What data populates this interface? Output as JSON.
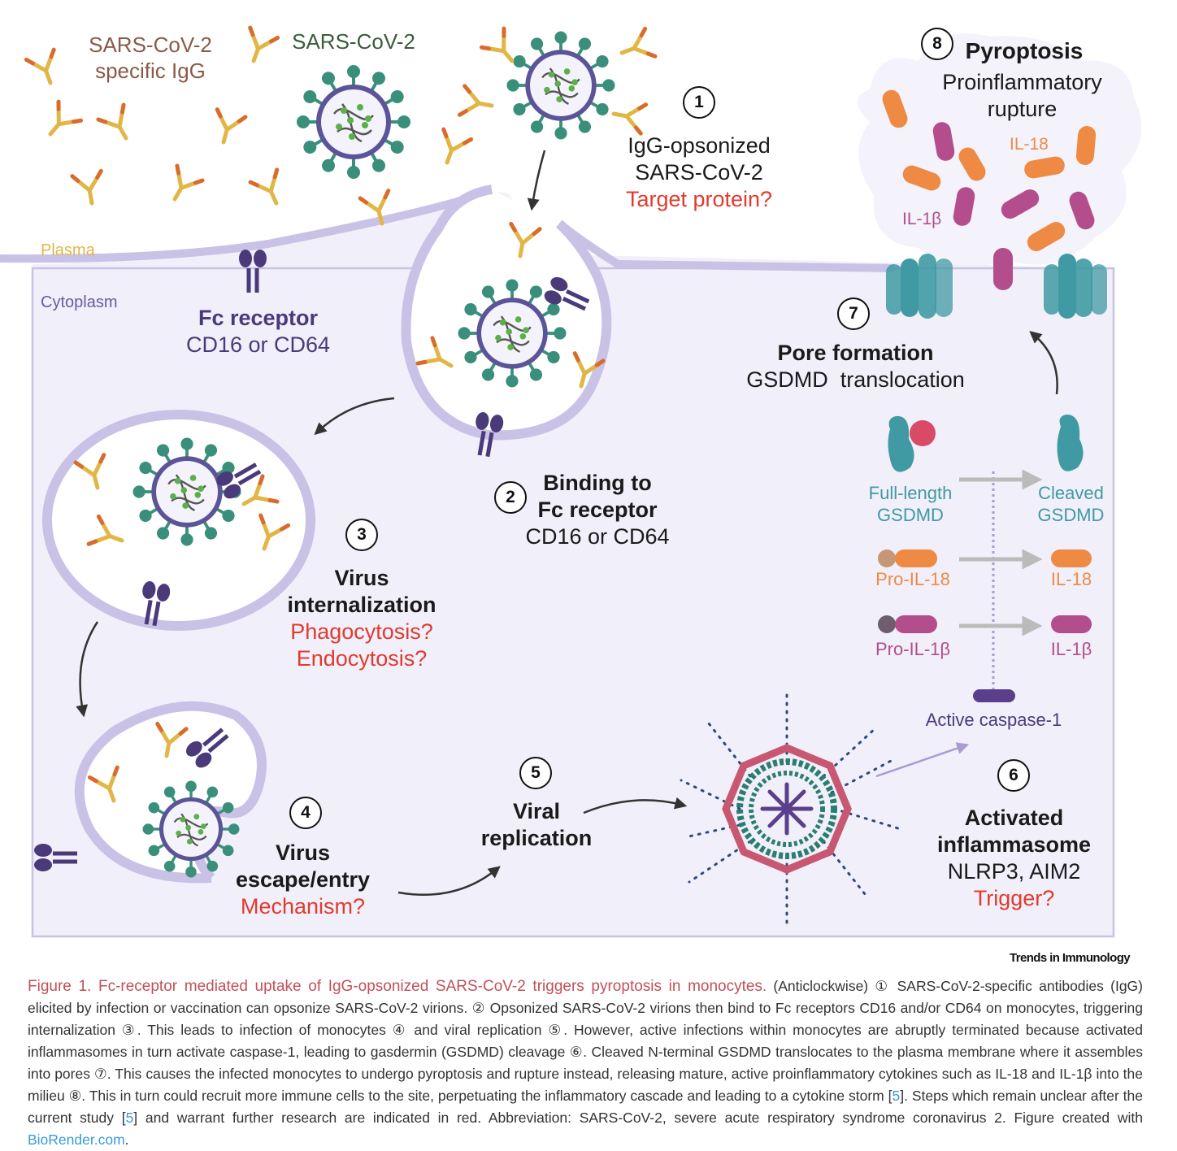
{
  "labels": {
    "igg": [
      "SARS-CoV-2",
      "specific IgG"
    ],
    "virus": "SARS-CoV-2",
    "plasma": "Plasma",
    "cytoplasm": "Cytoplasm",
    "fc_receptor": {
      "title": "Fc receptor",
      "sub": "CD16 or CD64"
    },
    "step1": {
      "num": "1",
      "lines": [
        "IgG-opsonized",
        "SARS-CoV-2"
      ],
      "question": "Target protein?"
    },
    "step2": {
      "num": "2",
      "lines": [
        "Binding to",
        "Fc receptor"
      ],
      "sub": "CD16 or CD64"
    },
    "step3": {
      "num": "3",
      "lines": [
        "Virus",
        "internalization"
      ],
      "questions": [
        "Phagocytosis?",
        "Endocytosis?"
      ]
    },
    "step4": {
      "num": "4",
      "lines": [
        "Virus",
        "escape/entry"
      ],
      "question": "Mechanism?"
    },
    "step5": {
      "num": "5",
      "lines": [
        "Viral",
        "replication"
      ]
    },
    "step6": {
      "num": "6",
      "lines": [
        "Activated",
        "inflammasome"
      ],
      "sub": "NLRP3, AIM2",
      "question": "Trigger?"
    },
    "step7": {
      "num": "7",
      "title": "Pore formation",
      "sub": "GSDMD  translocation"
    },
    "step8": {
      "num": "8",
      "title": "Pyroptosis",
      "sub": [
        "Proinflammatory",
        "rupture"
      ]
    },
    "il18": "IL-18",
    "il1b": "IL-1β",
    "full_gsdmd": [
      "Full-length",
      "GSDMD"
    ],
    "cleaved_gsdmd": [
      "Cleaved",
      "GSDMD"
    ],
    "pro_il18": "Pro-IL-18",
    "il18_product": "IL-18",
    "pro_il1b": "Pro-IL-1β",
    "il1b_product": "IL-1β",
    "caspase": "Active caspase-1"
  },
  "colors": {
    "membrane": "#c9c2e6",
    "membrane_fill": "#eeebf8",
    "virus_green": "#3a8f7b",
    "virus_inner": "#5b5498",
    "antibody": "#e2b646",
    "antibody_accent": "#d96b2b",
    "receptor": "#4a3a7a",
    "il18": "#ef8a45",
    "il1b": "#b34d8b",
    "gsdmd": "#3f9aa3",
    "gsdmd_head": "#d94a66",
    "caspase": "#5a3f8c",
    "step_red": "#e03b2f"
  },
  "journal": "Trends in Immunology",
  "caption": {
    "title": "Figure 1. Fc-receptor mediated uptake of IgG-opsonized SARS-CoV-2 triggers pyroptosis in monocytes.",
    "p1": " (Anticlockwise) ① SARS-CoV-2-specific antibodies (IgG) elicited by infection or vaccination can opsonize SARS-CoV-2 virions. ② Opsonized SARS-CoV-2 virions then bind to Fc receptors CD16 and/or CD64 on monocytes, triggering internalization ③. This leads to infection of monocytes ④ and viral replication ⑤. However, active infections within monocytes are abruptly terminated because activated inflammasomes in turn activate caspase-1, leading to gasdermin (GSDMD) cleavage ⑥. Cleaved N-terminal GSDMD translocates to the plasma membrane where it assembles into pores ⑦. This causes the infected monocytes to undergo pyroptosis and rupture instead, releasing mature, active proinflammatory cytokines such as IL-18 and IL-1β into the milieu ⑧. This in turn could recruit more immune cells to the site, perpetuating the inflammatory cascade and leading to a cytokine storm [",
    "ref1": "5",
    "p2": "]. Steps which remain unclear after the current study [",
    "ref2": "5",
    "p3": "] and warrant further research are indicated in red. Abbreviation: SARS-CoV-2, severe acute respiratory syndrome coronavirus 2. Figure created with ",
    "link": "BioRender.com",
    "p4": "."
  }
}
